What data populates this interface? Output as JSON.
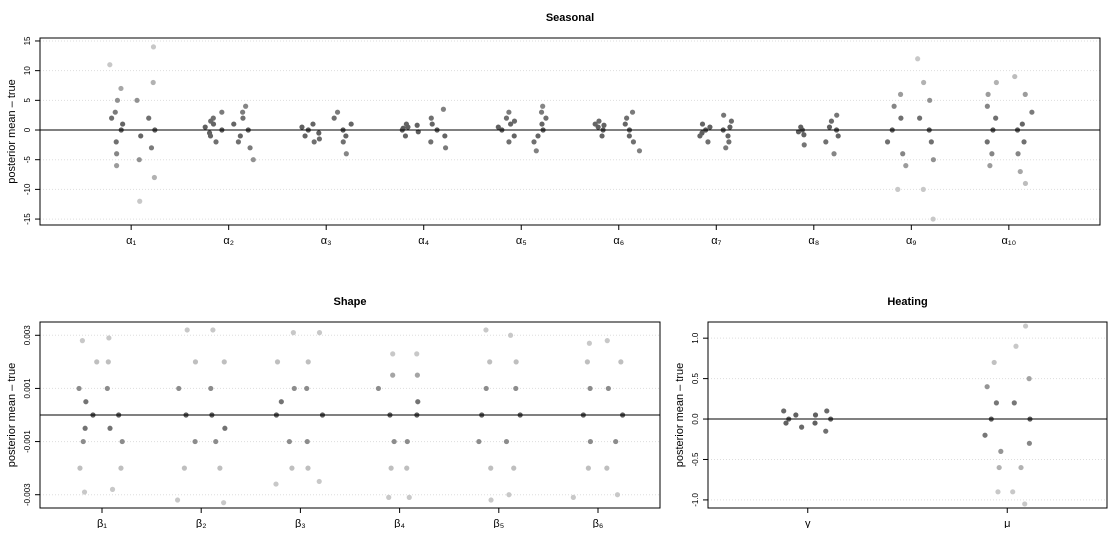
{
  "chart_data": [
    {
      "type": "strip",
      "title": "Seasonal",
      "ylabel": "posterior mean – true",
      "categories": [
        "α₁",
        "α₂",
        "α₃",
        "α₄",
        "α₅",
        "α₆",
        "α₇",
        "α₈",
        "α₉",
        "α₁₀"
      ],
      "values": [
        [
          [
            11,
            7,
            5,
            3,
            2,
            1,
            0,
            -2,
            -4,
            -6
          ],
          [
            14,
            8,
            5,
            2,
            0,
            -1,
            -3,
            -5,
            -8,
            -12
          ]
        ],
        [
          [
            3,
            2,
            1.5,
            1,
            0.5,
            0,
            -0.5,
            -1,
            -2
          ],
          [
            4,
            3,
            2,
            1,
            0,
            -1,
            -2,
            -3,
            -5
          ]
        ],
        [
          [
            1,
            0.5,
            0,
            -0.5,
            -1,
            -1.5,
            -2
          ],
          [
            3,
            2,
            1,
            0,
            -1,
            -2,
            -4
          ]
        ],
        [
          [
            1,
            0.8,
            0.5,
            0.3,
            0,
            -0.3,
            -1
          ],
          [
            3.5,
            2,
            1,
            0,
            -1,
            -2,
            -3
          ]
        ],
        [
          [
            3,
            2,
            1.5,
            1,
            0.5,
            0,
            -1,
            -2
          ],
          [
            4,
            3,
            2,
            1,
            0,
            -1,
            -2,
            -3.5
          ]
        ],
        [
          [
            1.5,
            1,
            0.8,
            0.5,
            0,
            -1
          ],
          [
            3,
            2,
            1,
            0,
            -1,
            -2,
            -3.5
          ]
        ],
        [
          [
            1,
            0.5,
            0,
            -0.5,
            -1,
            -2
          ],
          [
            2.5,
            1.5,
            0.5,
            0,
            -1,
            -2,
            -3
          ]
        ],
        [
          [
            0.5,
            0,
            -0.3,
            -0.8,
            -2.5
          ],
          [
            2.5,
            1.5,
            0.5,
            0,
            -1,
            -2,
            -4
          ]
        ],
        [
          [
            6,
            4,
            2,
            0,
            -2,
            -4,
            -6,
            -10
          ],
          [
            12,
            8,
            5,
            2,
            0,
            -2,
            -5,
            -10,
            -15
          ]
        ],
        [
          [
            8,
            6,
            4,
            2,
            0,
            -2,
            -4,
            -6
          ],
          [
            9,
            6,
            3,
            1,
            0,
            -2,
            -4,
            -7,
            -9
          ]
        ]
      ],
      "ylim": [
        -16,
        15.5
      ],
      "yticks": [
        -15,
        -10,
        -5,
        0,
        5,
        10,
        15
      ],
      "hline": 0,
      "grid": true
    },
    {
      "type": "strip",
      "title": "Shape",
      "ylabel": "posterior mean – true",
      "categories": [
        "β₁",
        "β₂",
        "β₃",
        "β₄",
        "β₅",
        "β₆"
      ],
      "values": [
        [
          [
            0.0028,
            0.002,
            0.001,
            0.0005,
            0,
            -0.0005,
            -0.001,
            -0.002,
            -0.0029
          ],
          [
            0.0029,
            0.002,
            0.001,
            0,
            -0.0005,
            -0.001,
            -0.002,
            -0.0028
          ]
        ],
        [
          [
            0.0032,
            0.002,
            0.001,
            0,
            -0.001,
            -0.002,
            -0.0032
          ],
          [
            0.0032,
            0.002,
            0.001,
            0,
            -0.0005,
            -0.001,
            -0.002,
            -0.0033
          ]
        ],
        [
          [
            0.0031,
            0.002,
            0.001,
            0.0005,
            0,
            -0.001,
            -0.002,
            -0.0026
          ],
          [
            0.0031,
            0.002,
            0.001,
            0,
            -0.001,
            -0.002,
            -0.0025
          ]
        ],
        [
          [
            0.0023,
            0.0015,
            0.001,
            0,
            -0.001,
            -0.002,
            -0.0031
          ],
          [
            0.0023,
            0.0015,
            0.0005,
            0,
            -0.001,
            -0.002,
            -0.0031
          ]
        ],
        [
          [
            0.0032,
            0.002,
            0.001,
            0,
            -0.001,
            -0.002,
            -0.0032
          ],
          [
            0.003,
            0.002,
            0.001,
            0,
            -0.001,
            -0.002,
            -0.003
          ]
        ],
        [
          [
            0.0027,
            0.002,
            0.001,
            0,
            -0.001,
            -0.002,
            -0.0031
          ],
          [
            0.0028,
            0.002,
            0.001,
            0,
            -0.001,
            -0.002,
            -0.003
          ]
        ]
      ],
      "ylim": [
        -0.0035,
        0.0035
      ],
      "yticks": [
        -0.003,
        -0.001,
        0.001,
        0.003
      ],
      "hline": 0,
      "grid": true
    },
    {
      "type": "strip",
      "title": "Heating",
      "ylabel": "posterior mean – true",
      "categories": [
        "γ",
        "μ"
      ],
      "values": [
        [
          [
            0.1,
            0.05,
            0,
            -0.05,
            -0.1
          ],
          [
            0.1,
            0.05,
            0,
            -0.05,
            -0.15
          ]
        ],
        [
          [
            0.7,
            0.4,
            0.2,
            0,
            -0.2,
            -0.4,
            -0.6,
            -0.9
          ],
          [
            1.15,
            0.9,
            0.5,
            0.2,
            0,
            -0.3,
            -0.6,
            -0.9,
            -1.05
          ]
        ]
      ],
      "ylim": [
        -1.1,
        1.2
      ],
      "yticks": [
        {
          "value": -1,
          "label": "-1.0"
        },
        {
          "value": -0.5,
          "label": "-0.5"
        },
        {
          "value": 0,
          "label": "0.0"
        },
        {
          "value": 0.5,
          "label": "0.5"
        },
        {
          "value": 1,
          "label": "1.0"
        }
      ],
      "hline": 0,
      "grid": true
    }
  ]
}
